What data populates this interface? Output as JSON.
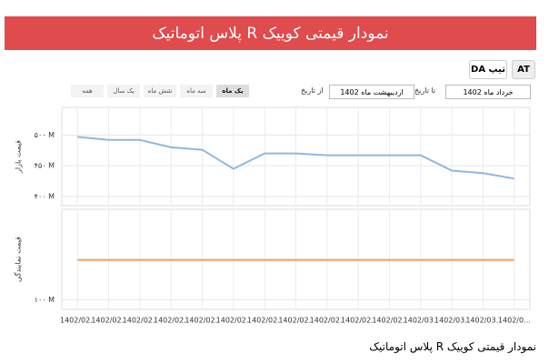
{
  "header": {
    "title": "نمودار قیمتی کوییک R پلاس اتوماتیک"
  },
  "toolbar": {
    "buttons": [
      "AT",
      "تیپ DA"
    ],
    "to_label": "تا تاریخ",
    "to_value": "خرداد ماه 1402",
    "from_label": "از تاریخ",
    "from_value": "اردیبهشت ماه 1402",
    "ranges": [
      "یک ماه",
      "سه ماه",
      "شش ماه",
      "یک سال",
      "همه"
    ],
    "active_range": 0
  },
  "chart_data": {
    "type": "line",
    "categories": [
      "1402/02..",
      "1402/02..",
      "1402/02..",
      "1402/02..",
      "1402/02..",
      "1402/02..",
      "1402/02..",
      "1402/02..",
      "1402/02..",
      "1402/02..",
      "1402/02..",
      "1402/03..",
      "1402/03..",
      "1402/03..",
      "1402/0..."
    ],
    "ylabel": "قیمت بازار",
    "y2label": "قیمت نمایندگی",
    "ylim": [
      385,
      545
    ],
    "yticks": [
      {
        "value": 400,
        "label": "۴۰۰ M"
      },
      {
        "value": 450,
        "label": "۴۵۰ M"
      },
      {
        "value": 500,
        "label": "۵۰۰ M"
      }
    ],
    "y2lim": [
      92,
      175
    ],
    "y2ticks": [
      {
        "value": 100,
        "label": "۱۰۰ M"
      }
    ],
    "grid": true,
    "series": [
      {
        "color": "#8fb8e0",
        "values": [
          497,
          492,
          492,
          480,
          476,
          445,
          470,
          470,
          467,
          467,
          467,
          467,
          442,
          438,
          429
        ]
      },
      {
        "color": "#f0a060",
        "axis": "y2",
        "values": [
          133,
          133,
          133,
          133,
          133,
          133,
          133,
          133,
          133,
          133,
          133,
          133,
          133,
          133,
          133
        ]
      }
    ]
  },
  "caption": "نمودار قیمتی کوییک R پلاس اتوماتیک"
}
